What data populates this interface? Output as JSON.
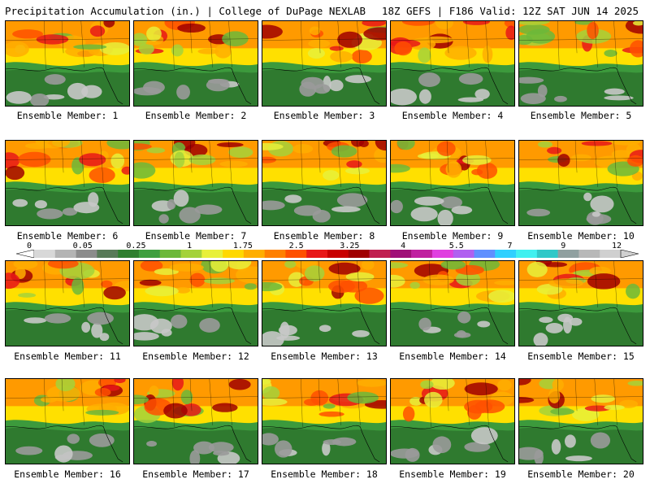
{
  "header": {
    "title_left": "Precipitation Accumulation (in.) | College of DuPage NEXLAB",
    "title_right": "18Z GEFS | F186 Valid: 12Z SAT JUN 14 2025"
  },
  "colorbar": {
    "tick_labels": [
      "0",
      "0.05",
      "0.25",
      "1",
      "1.75",
      "2.5",
      "3.25",
      "4",
      "5.5",
      "7",
      "9",
      "12"
    ],
    "colors": [
      "#d8d8d8",
      "#b4b4b4",
      "#8c8c8c",
      "#587a58",
      "#2f7f2f",
      "#3f9f3f",
      "#6cb83a",
      "#a4d23a",
      "#e8f03a",
      "#ffd800",
      "#ffae00",
      "#ff8000",
      "#ff5000",
      "#e81818",
      "#c80000",
      "#a00000",
      "#c02050",
      "#a01078",
      "#c020a0",
      "#e040e0",
      "#b060f0",
      "#6090ff",
      "#30d0ff",
      "#40f0f0",
      "#30c8c8",
      "#90a0a0",
      "#b8b8b8",
      "#d0d0d0"
    ]
  },
  "panels": [
    {
      "label": "Ensemble Member: 1"
    },
    {
      "label": "Ensemble Member: 2"
    },
    {
      "label": "Ensemble Member: 3"
    },
    {
      "label": "Ensemble Member: 4"
    },
    {
      "label": "Ensemble Member: 5"
    },
    {
      "label": "Ensemble Member: 6"
    },
    {
      "label": "Ensemble Member: 7"
    },
    {
      "label": "Ensemble Member: 8"
    },
    {
      "label": "Ensemble Member: 9"
    },
    {
      "label": "Ensemble Member: 10"
    },
    {
      "label": "Ensemble Member: 11"
    },
    {
      "label": "Ensemble Member: 12"
    },
    {
      "label": "Ensemble Member: 13"
    },
    {
      "label": "Ensemble Member: 14"
    },
    {
      "label": "Ensemble Member: 15"
    },
    {
      "label": "Ensemble Member: 16"
    },
    {
      "label": "Ensemble Member: 17"
    },
    {
      "label": "Ensemble Member: 18"
    },
    {
      "label": "Ensemble Member: 19"
    },
    {
      "label": "Ensemble Member: 20"
    }
  ]
}
